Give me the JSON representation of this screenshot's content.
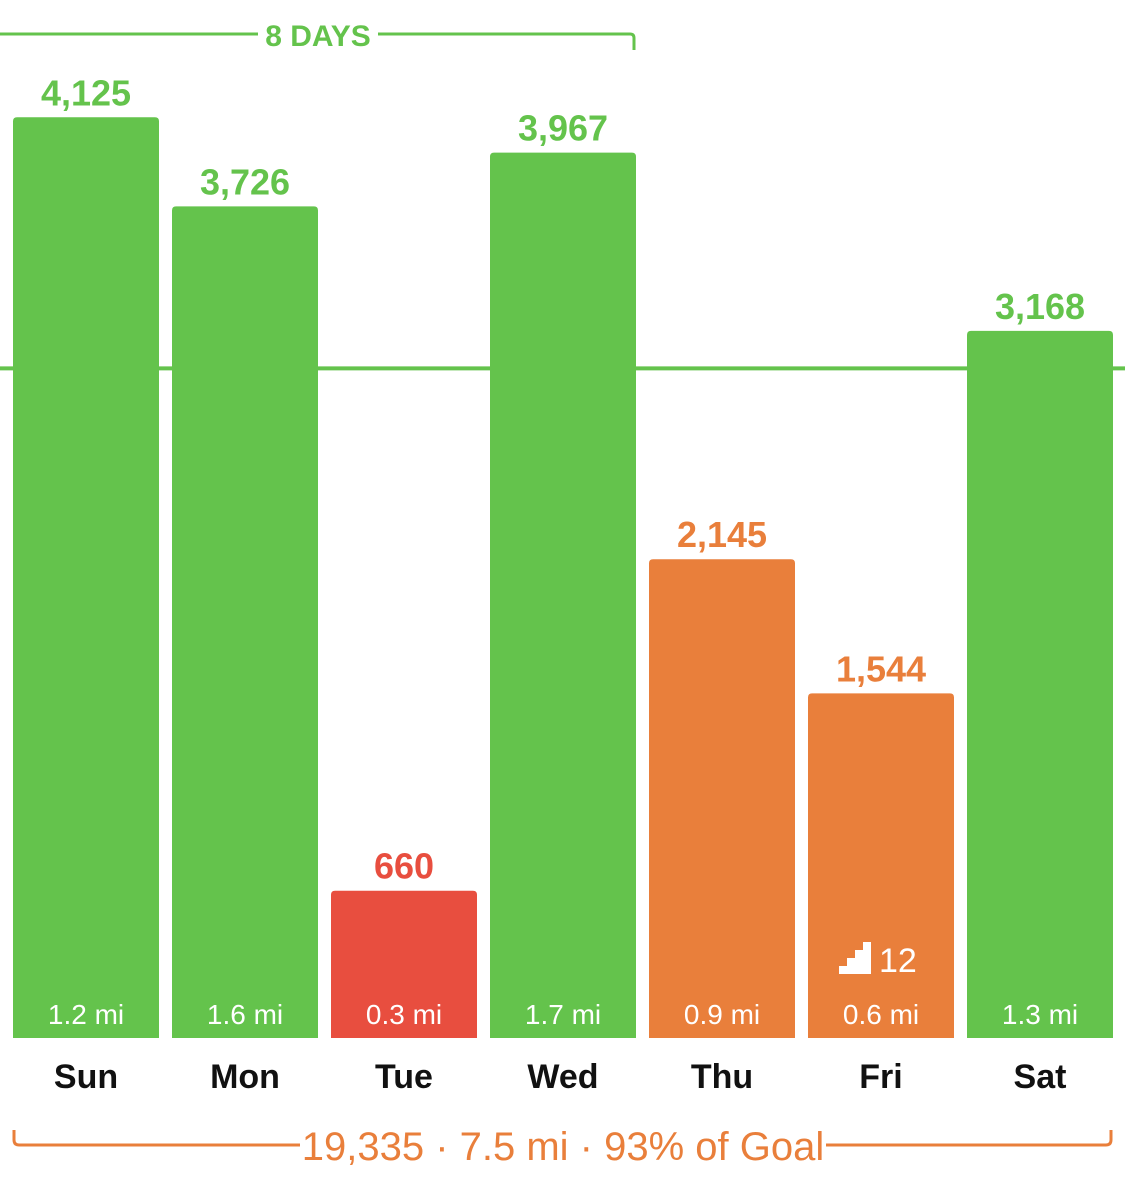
{
  "colors": {
    "green": "#64c34c",
    "orange": "#e97f3b",
    "red": "#e84e3f",
    "axis_text": "#111111",
    "dist_text": "#ffffff"
  },
  "streak": {
    "label": "8 DAYS",
    "color": "#64c34c"
  },
  "goal_line": {
    "value": 3000,
    "color": "#64c34c"
  },
  "summary": {
    "text": "19,335 · 7.5 mi · 93% of Goal",
    "color": "#e97f3b"
  },
  "floors": {
    "day": "Fri",
    "count": "12",
    "icon": "stairs-icon"
  },
  "chart_data": {
    "type": "bar",
    "title": "",
    "xlabel": "",
    "ylabel": "",
    "categories": [
      "Sun",
      "Mon",
      "Tue",
      "Wed",
      "Thu",
      "Fri",
      "Sat"
    ],
    "values": [
      4125,
      3726,
      660,
      3967,
      2145,
      1544,
      3168
    ],
    "value_labels": [
      "4,125",
      "3,726",
      "660",
      "3,967",
      "2,145",
      "1,544",
      "3,168"
    ],
    "distance_labels": [
      "1.2 mi",
      "1.6 mi",
      "0.3 mi",
      "1.7 mi",
      "0.9 mi",
      "0.6 mi",
      "1.3 mi"
    ],
    "bar_colors": [
      "#64c34c",
      "#64c34c",
      "#e84e3f",
      "#64c34c",
      "#e97f3b",
      "#e97f3b",
      "#64c34c"
    ],
    "goal": 3000,
    "ylim": [
      0,
      4400
    ],
    "grid": false,
    "legend": "none"
  }
}
